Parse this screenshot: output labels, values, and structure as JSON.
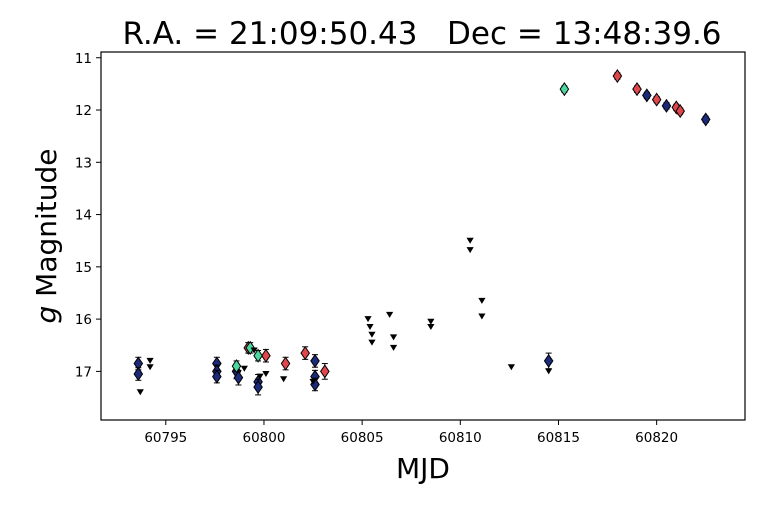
{
  "chart_data": {
    "type": "scatter",
    "title": "R.A. = 21:09:50.43   Dec = 13:48:39.6",
    "xlabel": "MJD",
    "ylabel_italic": "g",
    "ylabel_rest": " Magnitude",
    "xlim": [
      60791.7,
      60824.5
    ],
    "ylim": [
      17.93,
      10.89
    ],
    "y_inverted": true,
    "grid": false,
    "xticks": [
      60795,
      60800,
      60805,
      60810,
      60815,
      60820
    ],
    "yticks": [
      11,
      12,
      13,
      14,
      15,
      16,
      17
    ],
    "colors": {
      "navy": "#1c2a7a",
      "red": "#e0474c",
      "green": "#4dd7a0",
      "black": "#000000"
    },
    "series": [
      {
        "marker": "diamond",
        "color_key": "navy",
        "points": [
          [
            60793.6,
            16.85,
            0.12
          ],
          [
            60793.6,
            17.05,
            0.12
          ],
          [
            60797.6,
            16.85,
            0.12
          ],
          [
            60797.6,
            17.0,
            0.12
          ],
          [
            60797.6,
            17.1,
            0.12
          ],
          [
            60798.6,
            17.0,
            0.14
          ],
          [
            60798.7,
            17.12,
            0.14
          ],
          [
            60799.7,
            17.2,
            0.14
          ],
          [
            60799.7,
            17.3,
            0.15
          ],
          [
            60802.6,
            16.8,
            0.12
          ],
          [
            60802.6,
            17.1,
            0.12
          ],
          [
            60802.6,
            17.25,
            0.12
          ],
          [
            60814.5,
            16.8,
            0.15
          ],
          [
            60819.5,
            11.72,
            0.06
          ],
          [
            60820.5,
            11.92,
            0.06
          ],
          [
            60822.5,
            12.18,
            0.06
          ]
        ]
      },
      {
        "marker": "diamond",
        "color_key": "red",
        "points": [
          [
            60799.2,
            16.55,
            0.1
          ],
          [
            60800.1,
            16.7,
            0.12
          ],
          [
            60801.1,
            16.85,
            0.12
          ],
          [
            60802.1,
            16.65,
            0.12
          ],
          [
            60803.1,
            17.0,
            0.15
          ],
          [
            60818.0,
            11.35,
            0.06
          ],
          [
            60819.0,
            11.6,
            0.06
          ],
          [
            60820.0,
            11.8,
            0.06
          ],
          [
            60821.0,
            11.95,
            0.06
          ],
          [
            60821.2,
            12.02,
            0.06
          ]
        ]
      },
      {
        "marker": "diamond",
        "color_key": "green",
        "points": [
          [
            60798.6,
            16.9,
            0.1
          ],
          [
            60799.3,
            16.55,
            0.1
          ],
          [
            60799.7,
            16.7,
            0.1
          ],
          [
            60815.3,
            11.6,
            0.06
          ]
        ]
      },
      {
        "marker": "triangle-down",
        "color_key": "black",
        "points": [
          [
            60793.7,
            17.4
          ],
          [
            60794.2,
            16.8
          ],
          [
            60794.2,
            16.92
          ],
          [
            60799.0,
            16.95
          ],
          [
            60799.5,
            16.6
          ],
          [
            60799.8,
            17.1
          ],
          [
            60800.1,
            17.05
          ],
          [
            60801.0,
            17.15
          ],
          [
            60802.5,
            17.2
          ],
          [
            60805.3,
            16.0
          ],
          [
            60805.4,
            16.15
          ],
          [
            60805.5,
            16.3
          ],
          [
            60805.5,
            16.45
          ],
          [
            60806.4,
            15.92
          ],
          [
            60806.6,
            16.35
          ],
          [
            60806.6,
            16.55
          ],
          [
            60808.5,
            16.05
          ],
          [
            60808.5,
            16.15
          ],
          [
            60810.5,
            14.5
          ],
          [
            60810.5,
            14.68
          ],
          [
            60811.1,
            15.65
          ],
          [
            60811.1,
            15.95
          ],
          [
            60812.6,
            16.92
          ],
          [
            60814.5,
            17.0
          ]
        ]
      }
    ]
  }
}
